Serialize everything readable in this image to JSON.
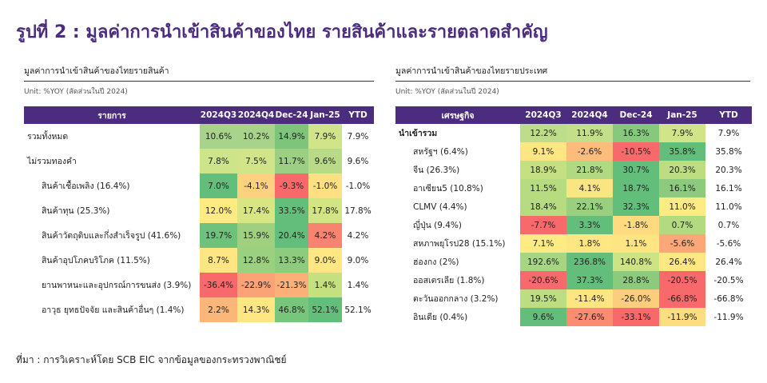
{
  "title": "รูปที่ 2 : มูลค่าการนำเข้าสินค้าของไทย รายสินค้าและรายตลาดสำคัญ",
  "footer": "ที่มา : การวิเคราะห์โดย SCB EIC จากข้อมูลของกระทรวงพาณิชย์",
  "left": {
    "title": "มูลค่าการนำเข้าสินค้าของไทยรายสินค้า",
    "unit": "Unit: %YOY (สัดส่วนในปี 2024)",
    "header": [
      "รายการ",
      "2024Q3",
      "2024Q4",
      "Dec-24",
      "Jan-25",
      "YTD"
    ],
    "rows": [
      {
        "label": "รวมทั้งหมด",
        "sub": false,
        "cells": [
          "10.6%",
          "10.2%",
          "14.9%",
          "7.9%"
        ],
        "colors": [
          "#a7d38a",
          "#a7d38a",
          "#7fc47b",
          "#d2e48a"
        ],
        "ytd": "7.9%"
      },
      {
        "label": "ไม่รวมทองคำ",
        "sub": false,
        "cells": [
          "7.8%",
          "7.5%",
          "11.7%",
          "9.6%"
        ],
        "colors": [
          "#cde48a",
          "#d2e48a",
          "#9ccf84",
          "#b9db88"
        ],
        "ytd": "9.6%"
      },
      {
        "label": "สินค้าเชื้อเพลิง (16.4%)",
        "sub": true,
        "cells": [
          "7.0%",
          "-4.1%",
          "-9.3%",
          "-1.0%"
        ],
        "colors": [
          "#63be7b",
          "#fdd17f",
          "#f8696b",
          "#fedf82"
        ],
        "ytd": "-1.0%"
      },
      {
        "label": "สินค้าทุน (25.3%)",
        "sub": true,
        "cells": [
          "12.0%",
          "17.4%",
          "33.5%",
          "17.8%"
        ],
        "colors": [
          "#ffea84",
          "#d7e683",
          "#63be7b",
          "#d3e583"
        ],
        "ytd": "17.8%"
      },
      {
        "label": "สินค้าวัตถุดิบและกึ่งสำเร็จรูป (41.6%)",
        "sub": true,
        "cells": [
          "19.7%",
          "15.9%",
          "20.4%",
          "4.2%"
        ],
        "colors": [
          "#6ec27c",
          "#9fd07f",
          "#63be7b",
          "#f8836e"
        ],
        "ytd": "4.2%"
      },
      {
        "label": "สินค้าอุปโภคบริโภค (11.5%)",
        "sub": true,
        "cells": [
          "8.7%",
          "12.8%",
          "13.3%",
          "9.0%"
        ],
        "colors": [
          "#ffe583",
          "#9ad07f",
          "#8dcc7e",
          "#ffe883"
        ],
        "ytd": "9.0%"
      },
      {
        "label": "ยานพาหนะและอุปกรณ์การขนส่ง (3.9%)",
        "sub": true,
        "cells": [
          "-36.4%",
          "-22.9%",
          "-21.3%",
          "1.4%"
        ],
        "colors": [
          "#f8696b",
          "#fba276",
          "#fcb078",
          "#c5e07f"
        ],
        "ytd": "1.4%"
      },
      {
        "label": "อาวุธ ยุทธปัจจัย และสินค้าอื่นๆ (1.4%)",
        "sub": true,
        "cells": [
          "2.2%",
          "14.3%",
          "46.8%",
          "52.1%"
        ],
        "colors": [
          "#fbb779",
          "#fee683",
          "#78c57c",
          "#63be7b"
        ],
        "ytd": "52.1%"
      }
    ]
  },
  "right": {
    "title": "มูลค่าการนำเข้าสินค้าของไทยรายประเทศ",
    "unit": "Unit: %YOY (สัดส่วนในปี 2024)",
    "header": [
      "เศรษฐกิจ",
      "2024Q3",
      "2024Q4",
      "Dec-24",
      "Jan-25",
      "YTD"
    ],
    "rows": [
      {
        "label": "นำเข้ารวม",
        "sub": false,
        "bold": true,
        "cells": [
          "12.2%",
          "11.9%",
          "16.3%",
          "7.9%"
        ],
        "colors": [
          "#bddd8a",
          "#c3df89",
          "#86c97e",
          "#d2e48a"
        ],
        "ytd": "7.9%"
      },
      {
        "label": "สหรัฐฯ (6.4%)",
        "sub": true,
        "bold": false,
        "cells": [
          "9.1%",
          "-2.6%",
          "-10.5%",
          "35.8%"
        ],
        "colors": [
          "#fee783",
          "#fcbc7b",
          "#f8696b",
          "#63be7b"
        ],
        "ytd": "35.8%"
      },
      {
        "label": "จีน (26.3%)",
        "sub": true,
        "bold": false,
        "cells": [
          "18.9%",
          "21.8%",
          "30.7%",
          "20.3%"
        ],
        "colors": [
          "#c5e083",
          "#b0d981",
          "#63be7b",
          "#bcdd82"
        ],
        "ytd": "20.3%"
      },
      {
        "label": "อาเซียน5 (10.8%)",
        "sub": true,
        "bold": false,
        "cells": [
          "11.5%",
          "4.1%",
          "18.7%",
          "16.1%"
        ],
        "colors": [
          "#b6db81",
          "#f9e683",
          "#63be7b",
          "#8ccb7e"
        ],
        "ytd": "16.1%"
      },
      {
        "label": "CLMV (4.4%)",
        "sub": true,
        "bold": false,
        "cells": [
          "18.4%",
          "22.1%",
          "32.3%",
          "11.0%"
        ],
        "colors": [
          "#b6db81",
          "#98d07f",
          "#63be7b",
          "#ffeb84"
        ],
        "ytd": "11.0%"
      },
      {
        "label": "ญี่ปุ่น (9.4%)",
        "sub": true,
        "bold": false,
        "cells": [
          "-7.7%",
          "3.3%",
          "-1.8%",
          "0.7%"
        ],
        "colors": [
          "#f8696b",
          "#63be7b",
          "#fedb81",
          "#b3da80"
        ],
        "ytd": "0.7%"
      },
      {
        "label": "สหภาพยุโรป28 (15.1%)",
        "sub": true,
        "bold": false,
        "cells": [
          "7.1%",
          "1.8%",
          "1.1%",
          "-5.6%"
        ],
        "colors": [
          "#ffeb84",
          "#fee683",
          "#fee483",
          "#fba777"
        ],
        "ytd": "-5.6%"
      },
      {
        "label": "ฮ่องกง (2%)",
        "sub": true,
        "bold": false,
        "cells": [
          "192.6%",
          "236.8%",
          "140.8%",
          "26.4%"
        ],
        "colors": [
          "#a6d681",
          "#63be7b",
          "#cde384",
          "#ffe884"
        ],
        "ytd": "26.4%"
      },
      {
        "label": "ออสเตรเลีย (1.8%)",
        "sub": true,
        "bold": false,
        "cells": [
          "-20.6%",
          "37.3%",
          "28.8%",
          "-20.5%"
        ],
        "colors": [
          "#f8696b",
          "#63be7b",
          "#8ccb7e",
          "#f8696b"
        ],
        "ytd": "-20.5%"
      },
      {
        "label": "ตะวันออกกลาง (3.2%)",
        "sub": true,
        "bold": false,
        "cells": [
          "19.5%",
          "-11.4%",
          "-26.0%",
          "-66.8%"
        ],
        "colors": [
          "#bcdd82",
          "#fee583",
          "#fdcd7e",
          "#f8696b"
        ],
        "ytd": "-66.8%"
      },
      {
        "label": "อินเดีย (0.4%)",
        "sub": true,
        "bold": false,
        "cells": [
          "9.6%",
          "-27.6%",
          "-33.1%",
          "-11.9%"
        ],
        "colors": [
          "#63be7b",
          "#f98c71",
          "#f8696b",
          "#fedd82"
        ],
        "ytd": "-11.9%"
      }
    ]
  }
}
